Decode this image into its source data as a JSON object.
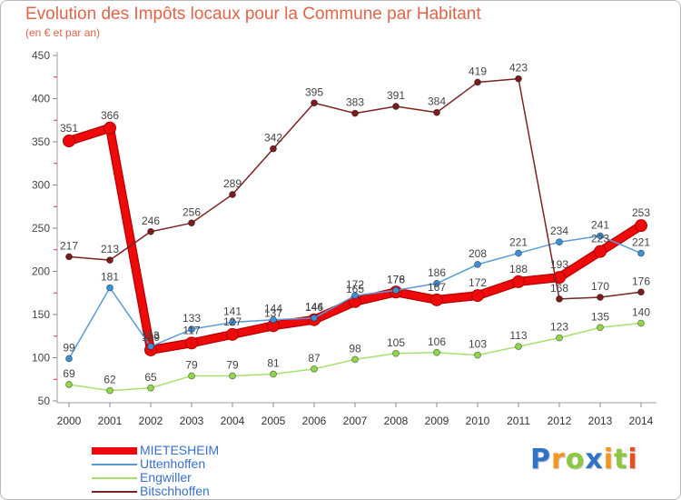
{
  "chart_data": {
    "type": "line",
    "title": "Evolution des Impôts locaux pour la Commune par Habitant",
    "subtitle": "(en € et par an)",
    "x": [
      2000,
      2001,
      2002,
      2003,
      2004,
      2005,
      2006,
      2007,
      2008,
      2009,
      2010,
      2011,
      2012,
      2013,
      2014
    ],
    "ylim": [
      50,
      450
    ],
    "yticks": [
      50,
      100,
      150,
      200,
      250,
      300,
      350,
      400,
      450
    ],
    "grid": false,
    "legend": "bottom-left",
    "series": [
      {
        "name": "MIETESHEIM",
        "color": "#ee0a0a",
        "highlight": true,
        "values": [
          351,
          366,
          109,
          117,
          127,
          137,
          144,
          165,
          176,
          167,
          172,
          188,
          193,
          223,
          253
        ]
      },
      {
        "name": "Uttenhoffen",
        "color": "#5b9bd5",
        "marker_color": "#3d8fd6",
        "highlight": false,
        "values": [
          99,
          181,
          113,
          133,
          141,
          144,
          146,
          172,
          178,
          186,
          208,
          221,
          234,
          241,
          221
        ]
      },
      {
        "name": "Engwiller",
        "color": "#a8e070",
        "marker_color": "#8fd64a",
        "highlight": false,
        "values": [
          69,
          62,
          65,
          79,
          79,
          81,
          87,
          98,
          105,
          106,
          103,
          113,
          123,
          135,
          140
        ]
      },
      {
        "name": "Bitschhoffen",
        "color": "#7b2323",
        "marker_color": "#7a1c1c",
        "highlight": false,
        "values": [
          217,
          213,
          246,
          256,
          289,
          342,
          395,
          383,
          391,
          384,
          419,
          423,
          168,
          170,
          176
        ]
      }
    ]
  },
  "logo": {
    "letters": [
      {
        "ch": "P",
        "color": "#2f72c8"
      },
      {
        "ch": "r",
        "color": "#f7941d"
      },
      {
        "ch": "o",
        "color": "#8dc63f"
      },
      {
        "ch": "x",
        "color": "#2f72c8"
      },
      {
        "ch": "i",
        "color": "#f7941d"
      },
      {
        "ch": "t",
        "color": "#8dc63f"
      },
      {
        "ch": "i",
        "color": "#e94e1b"
      }
    ]
  }
}
